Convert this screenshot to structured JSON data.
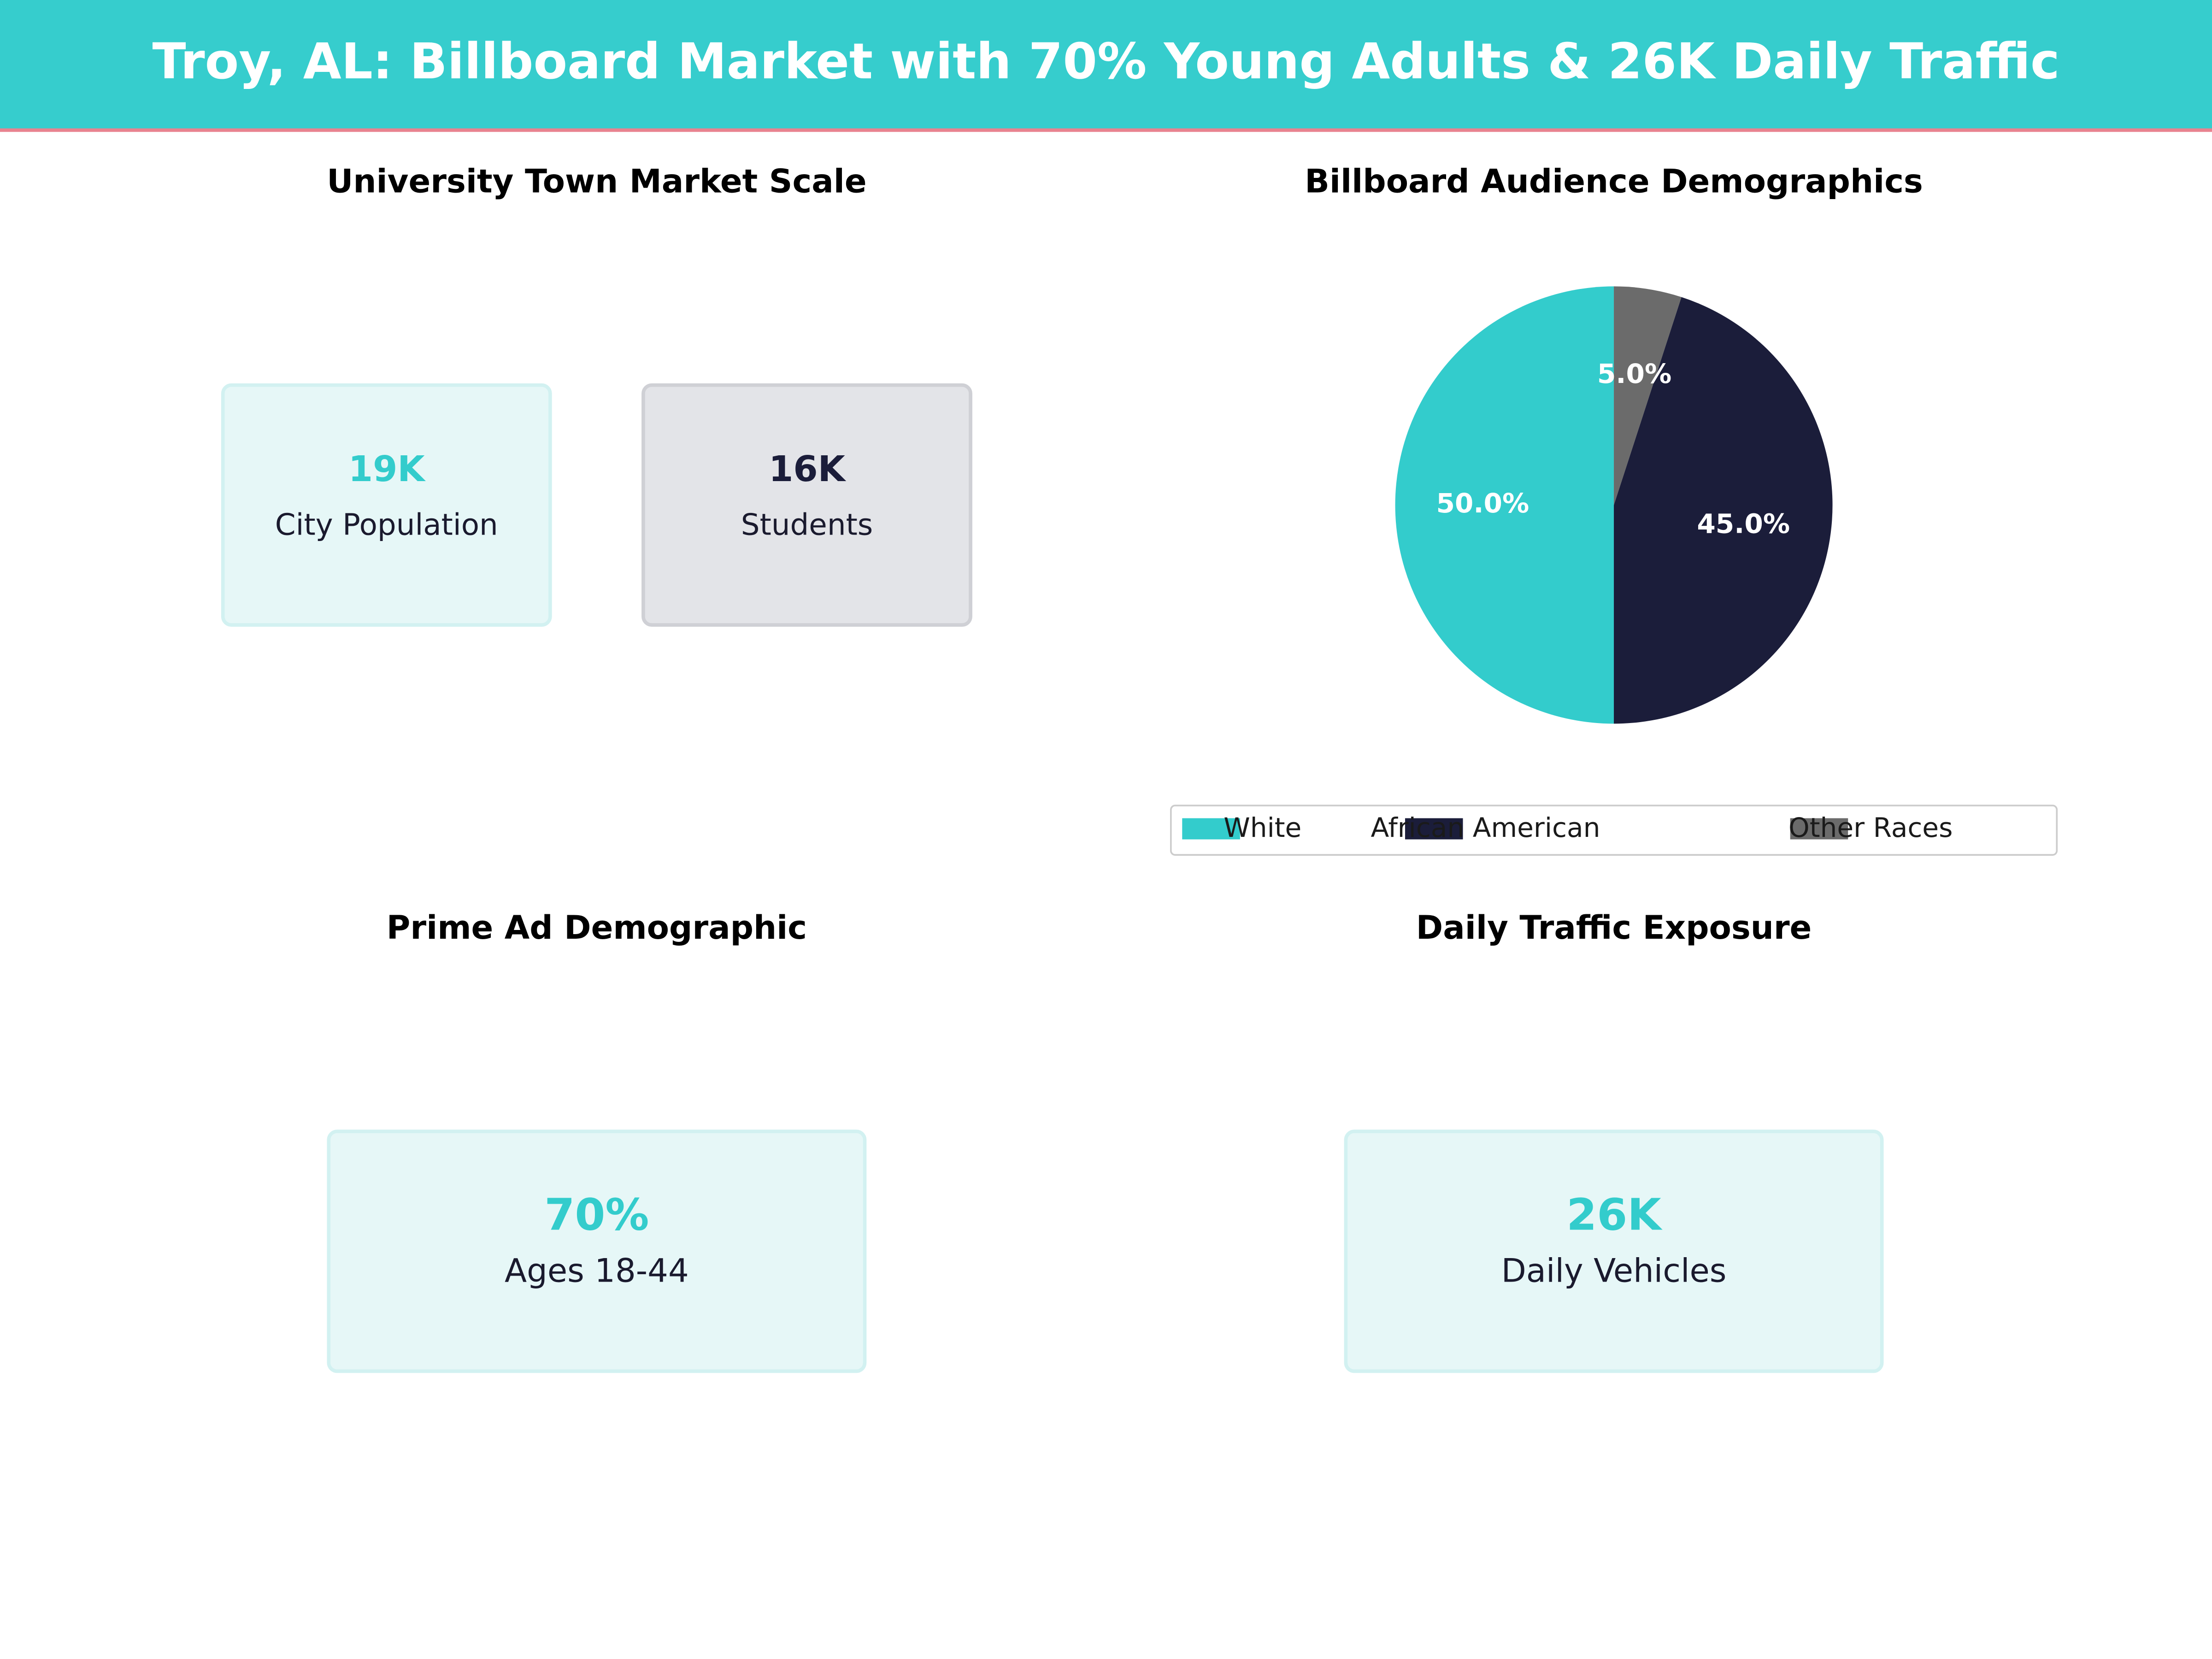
{
  "title": "Troy, AL: Billboard Market with 70% Young Adults & 26K Daily Traffic",
  "market_scale": {
    "title": "University Town Market Scale",
    "cards": [
      {
        "value": "19K",
        "label": "City Population",
        "color": "#33cccc"
      },
      {
        "value": "16K",
        "label": "Students",
        "color": "#1b1d3a"
      }
    ]
  },
  "chart_data": {
    "type": "pie",
    "title": "Billboard Audience Demographics",
    "categories": [
      "White",
      "African American",
      "Other Races"
    ],
    "values": [
      50,
      45,
      5
    ],
    "value_labels": [
      "50.0%",
      "45.0%",
      "5.0%"
    ],
    "colors": [
      "#33cccc",
      "#1b1d3a",
      "#6b6b6b"
    ],
    "legend": "lower center"
  },
  "prime_demographic": {
    "title": "Prime Ad Demographic",
    "cards": [
      {
        "value": "70%",
        "label": "Ages 18-44",
        "color": "#33cccc"
      }
    ]
  },
  "traffic": {
    "title": "Daily Traffic Exposure",
    "cards": [
      {
        "value": "26K",
        "label": "Daily Vehicles",
        "color": "#33cccc"
      }
    ]
  }
}
